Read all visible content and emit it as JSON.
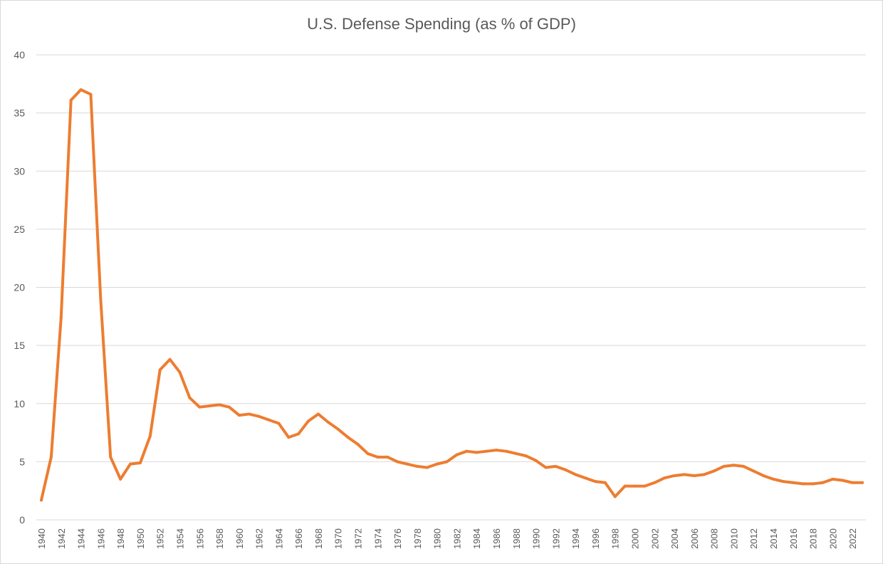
{
  "chart_data": {
    "type": "line",
    "title": "U.S. Defense Spending (as % of GDP)",
    "xlabel": "",
    "ylabel": "",
    "ylim": [
      0,
      40
    ],
    "yticks": [
      0,
      5,
      10,
      15,
      20,
      25,
      30,
      35,
      40
    ],
    "grid": true,
    "legend": "none",
    "line_color": "#ED7D31",
    "x": [
      1940,
      1941,
      1942,
      1943,
      1944,
      1945,
      1946,
      1947,
      1948,
      1949,
      1950,
      1951,
      1952,
      1953,
      1954,
      1955,
      1956,
      1957,
      1958,
      1959,
      1960,
      1961,
      1962,
      1963,
      1964,
      1965,
      1966,
      1967,
      1968,
      1969,
      1970,
      1971,
      1972,
      1973,
      1974,
      1975,
      1976,
      1977,
      1978,
      1979,
      1980,
      1981,
      1982,
      1983,
      1984,
      1985,
      1986,
      1987,
      1988,
      1989,
      1990,
      1991,
      1992,
      1993,
      1994,
      1995,
      1996,
      1997,
      1998,
      1999,
      2000,
      2001,
      2002,
      2003,
      2004,
      2005,
      2006,
      2007,
      2008,
      2009,
      2010,
      2011,
      2012,
      2013,
      2014,
      2015,
      2016,
      2017,
      2018,
      2019,
      2020,
      2021,
      2022,
      2023
    ],
    "xtick_labels": [
      "1940",
      "1942",
      "1944",
      "1946",
      "1948",
      "1950",
      "1952",
      "1954",
      "1956",
      "1958",
      "1960",
      "1962",
      "1964",
      "1966",
      "1968",
      "1970",
      "1972",
      "1974",
      "1976",
      "1978",
      "1980",
      "1982",
      "1984",
      "1986",
      "1988",
      "1990",
      "1992",
      "1994",
      "1996",
      "1998",
      "2000",
      "2002",
      "2004",
      "2006",
      "2008",
      "2010",
      "2012",
      "2014",
      "2016",
      "2018",
      "2020",
      "2022"
    ],
    "series": [
      {
        "values": [
          1.7,
          5.4,
          17.4,
          36.1,
          37.0,
          36.6,
          19.0,
          5.4,
          3.5,
          4.8,
          4.9,
          7.2,
          12.9,
          13.8,
          12.7,
          10.5,
          9.7,
          9.8,
          9.9,
          9.7,
          9.0,
          9.1,
          8.9,
          8.6,
          8.3,
          7.1,
          7.4,
          8.5,
          9.1,
          8.4,
          7.8,
          7.1,
          6.5,
          5.7,
          5.4,
          5.4,
          5.0,
          4.8,
          4.6,
          4.5,
          4.8,
          5.0,
          5.6,
          5.9,
          5.8,
          5.9,
          6.0,
          5.9,
          5.7,
          5.5,
          5.1,
          4.5,
          4.6,
          4.3,
          3.9,
          3.6,
          3.3,
          3.2,
          2.0,
          2.9,
          2.9,
          2.9,
          3.2,
          3.6,
          3.8,
          3.9,
          3.8,
          3.9,
          4.2,
          4.6,
          4.7,
          4.6,
          4.2,
          3.8,
          3.5,
          3.3,
          3.2,
          3.1,
          3.1,
          3.2,
          3.5,
          3.4,
          3.2,
          3.2
        ]
      }
    ]
  }
}
